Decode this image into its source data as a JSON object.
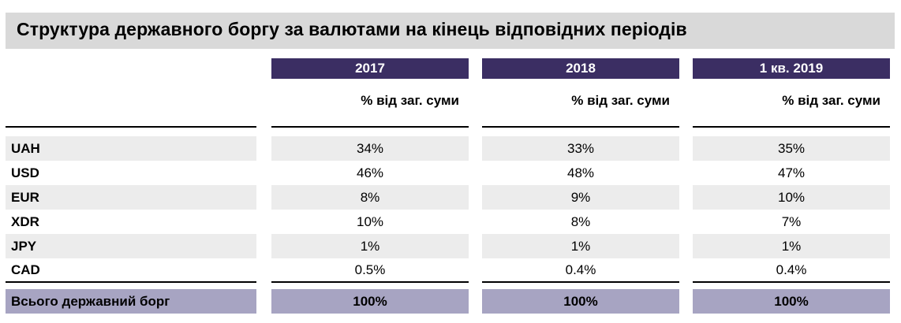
{
  "title": "Структура державного боргу за валютами на кінець відповідних періодів",
  "periods": [
    {
      "label": "2017",
      "unit": "% від заг. суми"
    },
    {
      "label": "2018",
      "unit": "% від заг. суми"
    },
    {
      "label": "1 кв. 2019",
      "unit": "% від заг. суми"
    }
  ],
  "rows": [
    {
      "currency": "UAH",
      "values": [
        "34%",
        "33%",
        "35%"
      ]
    },
    {
      "currency": "USD",
      "values": [
        "46%",
        "48%",
        "47%"
      ]
    },
    {
      "currency": "EUR",
      "values": [
        "8%",
        "9%",
        "10%"
      ]
    },
    {
      "currency": "XDR",
      "values": [
        "10%",
        "8%",
        "7%"
      ]
    },
    {
      "currency": "JPY",
      "values": [
        "1%",
        "1%",
        "1%"
      ]
    },
    {
      "currency": "CAD",
      "values": [
        "0.5%",
        "0.4%",
        "0.4%"
      ]
    }
  ],
  "total": {
    "label": "Всього державний борг",
    "values": [
      "100%",
      "100%",
      "100%"
    ]
  },
  "colors": {
    "header": "#3b2e63",
    "band": "#ececec",
    "total": "#a7a4c2",
    "title_bg": "#d9d9d9"
  }
}
